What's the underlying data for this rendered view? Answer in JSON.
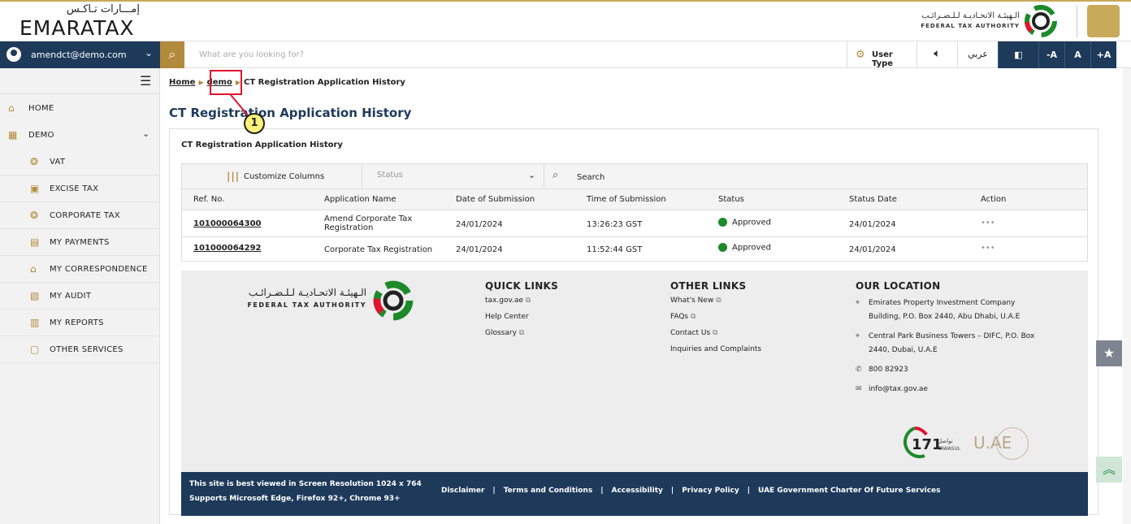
{
  "header": {
    "logo_ar": "إمـــارات تـاكـس",
    "logo_en": "EMARATAX",
    "fta_ar": "الـهيئـة الاتحـاديـة لـلـضـرائـب",
    "fta_en": "FEDERAL TAX AUTHORITY"
  },
  "navbar": {
    "user_email": "amendct@demo.com",
    "search_placeholder": "What are you looking for?",
    "user_type": "User Type",
    "arabic": "عربي",
    "font_decrease": "-A",
    "font_normal": "A",
    "font_increase": "+A"
  },
  "sidebar": {
    "home": "HOME",
    "demo": "DEMO",
    "items": [
      "VAT",
      "EXCISE TAX",
      "CORPORATE TAX",
      "MY PAYMENTS",
      "MY CORRESPONDENCE",
      "MY AUDIT",
      "MY REPORTS",
      "OTHER SERVICES"
    ]
  },
  "breadcrumb": {
    "home": "Home",
    "demo": "demo",
    "current": "CT Registration Application History"
  },
  "page": {
    "title": "CT Registration Application History",
    "card_title": "CT Registration Application History",
    "customize_columns": "Customize Columns",
    "status_placeholder": "Status",
    "search_placeholder": "Search"
  },
  "table": {
    "headers": [
      "Ref. No.",
      "Application Name",
      "Date of Submission",
      "Time of Submission",
      "Status",
      "Status Date",
      "Action"
    ],
    "rows": [
      {
        "ref": "101000064300",
        "name": "Amend Corporate Tax Registration",
        "date": "24/01/2024",
        "time": "13:26:23 GST",
        "status": "Approved",
        "status_date": "24/01/2024",
        "action": "•••"
      },
      {
        "ref": "101000064292",
        "name": "Corporate Tax Registration",
        "date": "24/01/2024",
        "time": "11:52:44 GST",
        "status": "Approved",
        "status_date": "24/01/2024",
        "action": "•••"
      }
    ]
  },
  "footer": {
    "fta_ar": "الـهيئـة الاتحـاديـة لـلـضـرائـب",
    "fta_en": "FEDERAL TAX AUTHORITY",
    "quick_links": {
      "title": "QUICK LINKS",
      "items": [
        "tax.gov.ae",
        "Help Center",
        "Glossary"
      ]
    },
    "other_links": {
      "title": "OTHER LINKS",
      "items": [
        "What's New",
        "FAQs",
        "Contact Us",
        "Inquiries and Complaints"
      ]
    },
    "location": {
      "title": "OUR LOCATION",
      "address1": "Emirates Property Investment Company Building, P.O. Box 2440, Abu Dhabi, U.A.E",
      "address2": "Central Park Business Towers – DIFC, P.O. Box 2440, Dubai, U.A.E",
      "phone": "800 82923",
      "email": "info@tax.gov.ae"
    },
    "tawasul": "171",
    "tawasul_ar": "تواصل",
    "tawasul_en": "TAWASUL",
    "uae_logo": "U.AE",
    "resolution_note": "This site is best viewed in Screen Resolution 1024 x 764",
    "browser_note": "Supports Microsoft Edge, Firefox 92+, Chrome 93+",
    "bottom_links": [
      "Disclaimer",
      "Terms and Conditions",
      "Accessibility",
      "Privacy Policy",
      "UAE Government Charter Of Future Services"
    ]
  },
  "annotation": {
    "number": "1"
  },
  "colors": {
    "navy": "#1e3a5b",
    "gold": "#b28a3c",
    "approved": "#1d8a2a",
    "annotation": "#e0142e"
  }
}
